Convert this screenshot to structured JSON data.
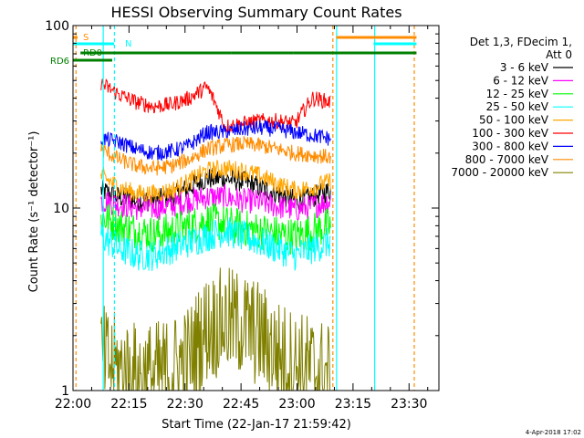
{
  "chart_data": {
    "type": "line",
    "title": "HESSI Observing Summary Count Rates",
    "xlabel": "Start Time (22-Jan-17 21:59:42)",
    "ylabel": "Count Rate (s⁻¹ detector⁻¹)",
    "y_scale": "log",
    "ylim": [
      1,
      100
    ],
    "xlim_minutes": [
      0,
      98
    ],
    "x_ticks": [
      {
        "minute": 0,
        "label": "22:00"
      },
      {
        "minute": 15,
        "label": "22:15"
      },
      {
        "minute": 30,
        "label": "22:30"
      },
      {
        "minute": 45,
        "label": "22:45"
      },
      {
        "minute": 60,
        "label": "23:00"
      },
      {
        "minute": 75,
        "label": "23:15"
      },
      {
        "minute": 90,
        "label": "23:30"
      }
    ],
    "y_ticks": [
      {
        "value": 1,
        "label": "1"
      },
      {
        "value": 10,
        "label": "10"
      },
      {
        "value": 100,
        "label": "100"
      }
    ],
    "legend_header": [
      "Det 1,3, FDecim 1,",
      "Att 0"
    ],
    "series": [
      {
        "name": "3 - 6 keV",
        "color": "#000000",
        "profile": [
          12.5,
          11.5,
          11,
          11,
          11.5,
          13,
          14.5,
          14.5,
          14,
          13,
          12,
          11,
          11.5,
          12.5
        ],
        "noise": 0.07
      },
      {
        "name": "6 - 12 keV",
        "color": "#ff00ff",
        "profile": [
          11,
          10.5,
          10,
          10,
          10.3,
          11,
          11.5,
          11.5,
          11,
          10.8,
          10.2,
          9.8,
          10.2,
          11
        ],
        "noise": 0.08
      },
      {
        "name": "12 - 25 keV",
        "color": "#00ff00",
        "profile": [
          9,
          8,
          7.5,
          7.2,
          7.5,
          8,
          8.5,
          8.2,
          7.8,
          7.5,
          7.2,
          7,
          7.5,
          8
        ],
        "noise": 0.12
      },
      {
        "name": "25 - 50 keV",
        "color": "#00ffff",
        "profile": [
          7,
          6,
          5.5,
          5.5,
          6,
          6.5,
          7,
          7.5,
          7,
          6.5,
          6,
          5.5,
          6,
          6.5
        ],
        "noise": 0.1
      },
      {
        "name": "50 - 100 keV",
        "color": "#ffa500",
        "profile": [
          15,
          13,
          12,
          12,
          12.5,
          14,
          16,
          16.5,
          16,
          15,
          13.5,
          12.5,
          13,
          14
        ],
        "noise": 0.06
      },
      {
        "name": "100 - 300 keV",
        "color": "#ff0000",
        "profile": [
          48,
          42,
          38,
          36,
          37,
          40,
          46,
          28,
          29,
          30,
          30,
          29,
          40,
          38
        ],
        "noise": 0.05
      },
      {
        "name": "300 - 800 keV",
        "color": "#0000ff",
        "profile": [
          24,
          23,
          21,
          20,
          20.5,
          22,
          26,
          26,
          27,
          27.5,
          27,
          26,
          25,
          24
        ],
        "noise": 0.05
      },
      {
        "name": "800 - 7000 keV",
        "color": "#ff8c00",
        "profile": [
          21,
          18.5,
          17,
          16.5,
          17,
          18.5,
          21,
          22,
          22.5,
          22,
          21,
          20,
          19.5,
          19
        ],
        "noise": 0.05
      },
      {
        "name": "7000 - 20000 keV",
        "color": "#808000",
        "profile": [
          1.5,
          1.3,
          1.2,
          1.2,
          1.3,
          1.5,
          2.2,
          2.4,
          2.3,
          2,
          1.6,
          1.4,
          1.3,
          1.2
        ],
        "noise": 0.35
      }
    ],
    "series_time_range_minutes": [
      7.5,
      69
    ],
    "flag_bars": [
      {
        "label": "S",
        "color": "#ff8c00",
        "segments": [
          [
            0,
            1.2
          ],
          [
            70.5,
            92
          ]
        ]
      },
      {
        "label": "N",
        "color": "#00ffff",
        "segments": [
          [
            0,
            11
          ],
          [
            80.5,
            92
          ]
        ]
      },
      {
        "label": "RD0",
        "color": "#008000",
        "segments": [
          [
            2,
            10.5
          ],
          [
            10.5,
            42.5
          ],
          [
            42.5,
            59
          ],
          [
            59,
            92
          ]
        ]
      },
      {
        "label": "RD6",
        "color": "#008000",
        "segments": [
          [
            0,
            10.5
          ]
        ]
      }
    ],
    "vertical_lines": [
      {
        "minute": 0.8,
        "color": "#ff8c00",
        "dashed": true
      },
      {
        "minute": 8.1,
        "color": "#00ffff",
        "dashed": false
      },
      {
        "minute": 11.1,
        "color": "#00ffff",
        "dashed": true
      },
      {
        "minute": 69.6,
        "color": "#ff8c00",
        "dashed": true
      },
      {
        "minute": 70.6,
        "color": "#00ffff",
        "dashed": false
      },
      {
        "minute": 80.8,
        "color": "#00ffff",
        "dashed": false
      },
      {
        "minute": 91.4,
        "color": "#ff8c00",
        "dashed": true
      }
    ],
    "grid": false,
    "legend_position": "right",
    "timestamp": "4-Apr-2018 17:02"
  }
}
